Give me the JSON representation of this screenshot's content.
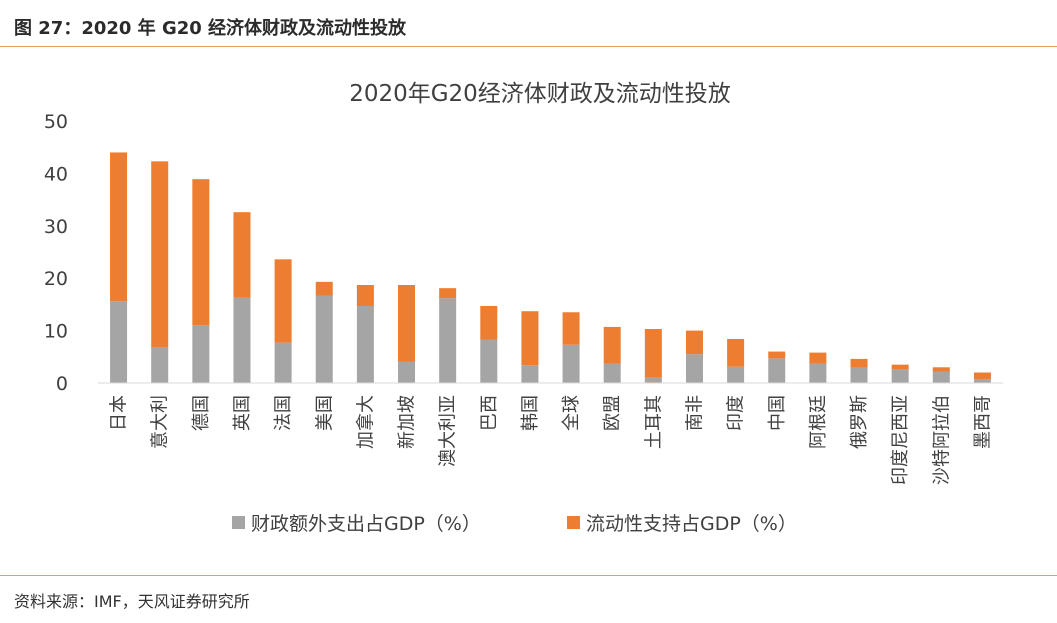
{
  "header": {
    "figure_title": "图 27：2020 年 G20 经济体财政及流动性投放"
  },
  "footer": {
    "source": "资料来源：IMF，天风证券研究所"
  },
  "colors": {
    "fiscal": "#a5a5a5",
    "liquidity": "#ed7d31",
    "rule": "#d9a35a"
  },
  "chart_data": {
    "type": "bar",
    "stacked": true,
    "title": "2020年G20经济体财政及流动性投放",
    "xlabel": "",
    "ylabel": "",
    "ylim": [
      0,
      50
    ],
    "yticks": [
      0,
      10,
      20,
      30,
      40,
      50
    ],
    "grid": false,
    "legend_position": "bottom",
    "categories": [
      "日本",
      "意大利",
      "德国",
      "英国",
      "法国",
      "美国",
      "加拿大",
      "新加坡",
      "澳大利亚",
      "巴西",
      "韩国",
      "全球",
      "欧盟",
      "土耳其",
      "南非",
      "印度",
      "中国",
      "阿根廷",
      "俄罗斯",
      "印度尼西亚",
      "沙特阿拉伯",
      "墨西哥"
    ],
    "series": [
      {
        "name": "财政额外支出占GDP（%）",
        "color": "#a5a5a5",
        "values": [
          15.6,
          6.8,
          11.0,
          16.3,
          7.7,
          16.7,
          14.7,
          4.1,
          16.2,
          8.3,
          3.4,
          7.3,
          3.7,
          1.0,
          5.5,
          3.1,
          4.7,
          3.7,
          2.9,
          2.6,
          2.2,
          0.7
        ]
      },
      {
        "name": "流动性支持占GDP（%）",
        "color": "#ed7d31",
        "values": [
          28.4,
          35.5,
          27.9,
          16.3,
          15.9,
          2.6,
          4.0,
          14.6,
          1.9,
          6.4,
          10.3,
          6.2,
          7.0,
          9.3,
          4.5,
          5.3,
          1.3,
          2.1,
          1.7,
          0.9,
          0.8,
          1.3
        ]
      }
    ]
  }
}
